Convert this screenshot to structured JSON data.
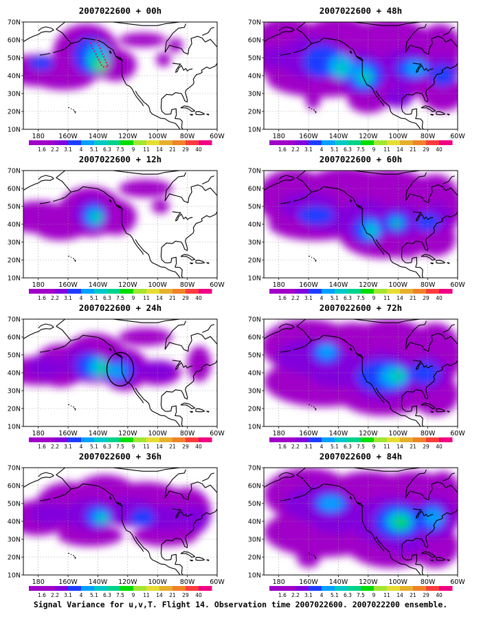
{
  "map_data": {
    "type": "contour-map-panels",
    "panels": [
      {
        "title": "2007022600 + 00h",
        "lead": "00h"
      },
      {
        "title": "2007022600 + 48h",
        "lead": "48h"
      },
      {
        "title": "2007022600 + 12h",
        "lead": "12h"
      },
      {
        "title": "2007022600 + 60h",
        "lead": "60h"
      },
      {
        "title": "2007022600 + 24h",
        "lead": "24h"
      },
      {
        "title": "2007022600 + 72h",
        "lead": "72h"
      },
      {
        "title": "2007022600 + 36h",
        "lead": "36h"
      },
      {
        "title": "2007022600 + 84h",
        "lead": "84h"
      }
    ],
    "lon_ticks": [
      "180",
      "160W",
      "140W",
      "120W",
      "100W",
      "80W",
      "60W"
    ],
    "lat_ticks": [
      "70N",
      "60N",
      "50N",
      "40N",
      "30N",
      "20N",
      "10N"
    ],
    "lon_range": [
      -190,
      -60
    ],
    "lat_range": [
      10,
      70
    ],
    "colorbar": {
      "labels": [
        "1.6",
        "2.2",
        "3.1",
        "4",
        "5.1",
        "6.3",
        "7.5",
        "9",
        "11",
        "14",
        "21",
        "29",
        "40"
      ],
      "colors": [
        "#a000c8",
        "#8200dc",
        "#1e3cff",
        "#00a0ff",
        "#00c8c8",
        "#00d28c",
        "#00dc00",
        "#a0e632",
        "#e6dc32",
        "#e6af2d",
        "#f08228",
        "#fa3c3c",
        "#f00082"
      ]
    },
    "annotations": [
      {
        "panel": "00h",
        "kind": "dotted-outline",
        "color": "#dd1177",
        "lon": [
          -145,
          -141,
          -133,
          -137
        ],
        "lat": [
          58,
          60,
          45,
          45
        ]
      },
      {
        "panel": "24h",
        "kind": "circle",
        "color": "#000000",
        "center_lon": -125,
        "center_lat": 42,
        "radius_deg": 9
      }
    ]
  },
  "caption": "Signal Variance for u,v,T. Flight 14. Observation time 2007022600. 2007022200 ensemble."
}
